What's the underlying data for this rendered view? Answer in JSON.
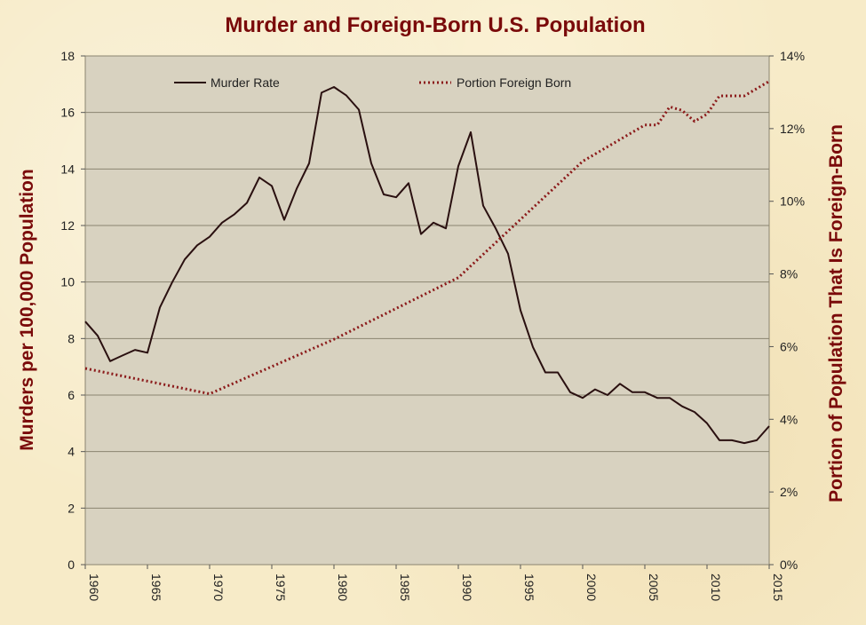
{
  "chart_data": {
    "type": "line",
    "title": "Murder and Foreign-Born U.S. Population",
    "ylabel": "Murders per 100,000 Population",
    "y2label": "Portion of  Population That Is Foreign-Born",
    "xlim": [
      1960,
      2015
    ],
    "ylim": [
      0,
      18
    ],
    "y2lim": [
      0,
      14
    ],
    "grid": "horizontal",
    "legend": "top",
    "x_ticks": [
      "1960",
      "1965",
      "1970",
      "1975",
      "1980",
      "1985",
      "1990",
      "1995",
      "2000",
      "2005",
      "2010",
      "2015"
    ],
    "y_ticks": [
      "0",
      "2",
      "4",
      "6",
      "8",
      "10",
      "12",
      "14",
      "16",
      "18"
    ],
    "y2_ticks": [
      "0%",
      "2%",
      "4%",
      "6%",
      "8%",
      "10%",
      "12%",
      "14%"
    ],
    "series": [
      {
        "name": "Murder Rate",
        "axis": "left",
        "style": "solid",
        "color": "#2a1010",
        "x": [
          1960,
          1961,
          1962,
          1963,
          1964,
          1965,
          1966,
          1967,
          1968,
          1969,
          1970,
          1971,
          1972,
          1973,
          1974,
          1975,
          1976,
          1977,
          1978,
          1979,
          1980,
          1981,
          1982,
          1983,
          1984,
          1985,
          1986,
          1987,
          1988,
          1989,
          1990,
          1991,
          1992,
          1993,
          1994,
          1995,
          1996,
          1997,
          1998,
          1999,
          2000,
          2001,
          2002,
          2003,
          2004,
          2005,
          2006,
          2007,
          2008,
          2009,
          2010,
          2011,
          2012,
          2013,
          2014,
          2015
        ],
        "y": [
          8.6,
          8.1,
          7.2,
          7.4,
          7.6,
          7.5,
          9.1,
          10.0,
          10.8,
          11.3,
          11.6,
          12.1,
          12.4,
          12.8,
          13.7,
          13.4,
          12.2,
          13.3,
          14.2,
          16.7,
          16.9,
          16.6,
          16.1,
          14.2,
          13.1,
          13.0,
          13.5,
          11.7,
          12.1,
          11.9,
          14.1,
          15.3,
          12.7,
          11.9,
          11.0,
          9.0,
          7.7,
          6.8,
          6.8,
          6.1,
          5.9,
          6.2,
          6.0,
          6.4,
          6.1,
          6.1,
          5.9,
          5.9,
          5.6,
          5.4,
          5.0,
          4.4,
          4.4,
          4.3,
          4.4,
          4.9
        ]
      },
      {
        "name": "Portion Foreign Born",
        "axis": "right",
        "style": "dotted",
        "color": "#8b1a1a",
        "x": [
          1960,
          1970,
          1980,
          1990,
          2000,
          2005,
          2006,
          2007,
          2008,
          2009,
          2010,
          2011,
          2012,
          2013,
          2014,
          2015
        ],
        "y": [
          5.4,
          4.7,
          6.2,
          7.9,
          11.1,
          12.1,
          12.1,
          12.6,
          12.5,
          12.2,
          12.4,
          12.9,
          12.9,
          12.9,
          13.1,
          13.3
        ]
      }
    ]
  }
}
